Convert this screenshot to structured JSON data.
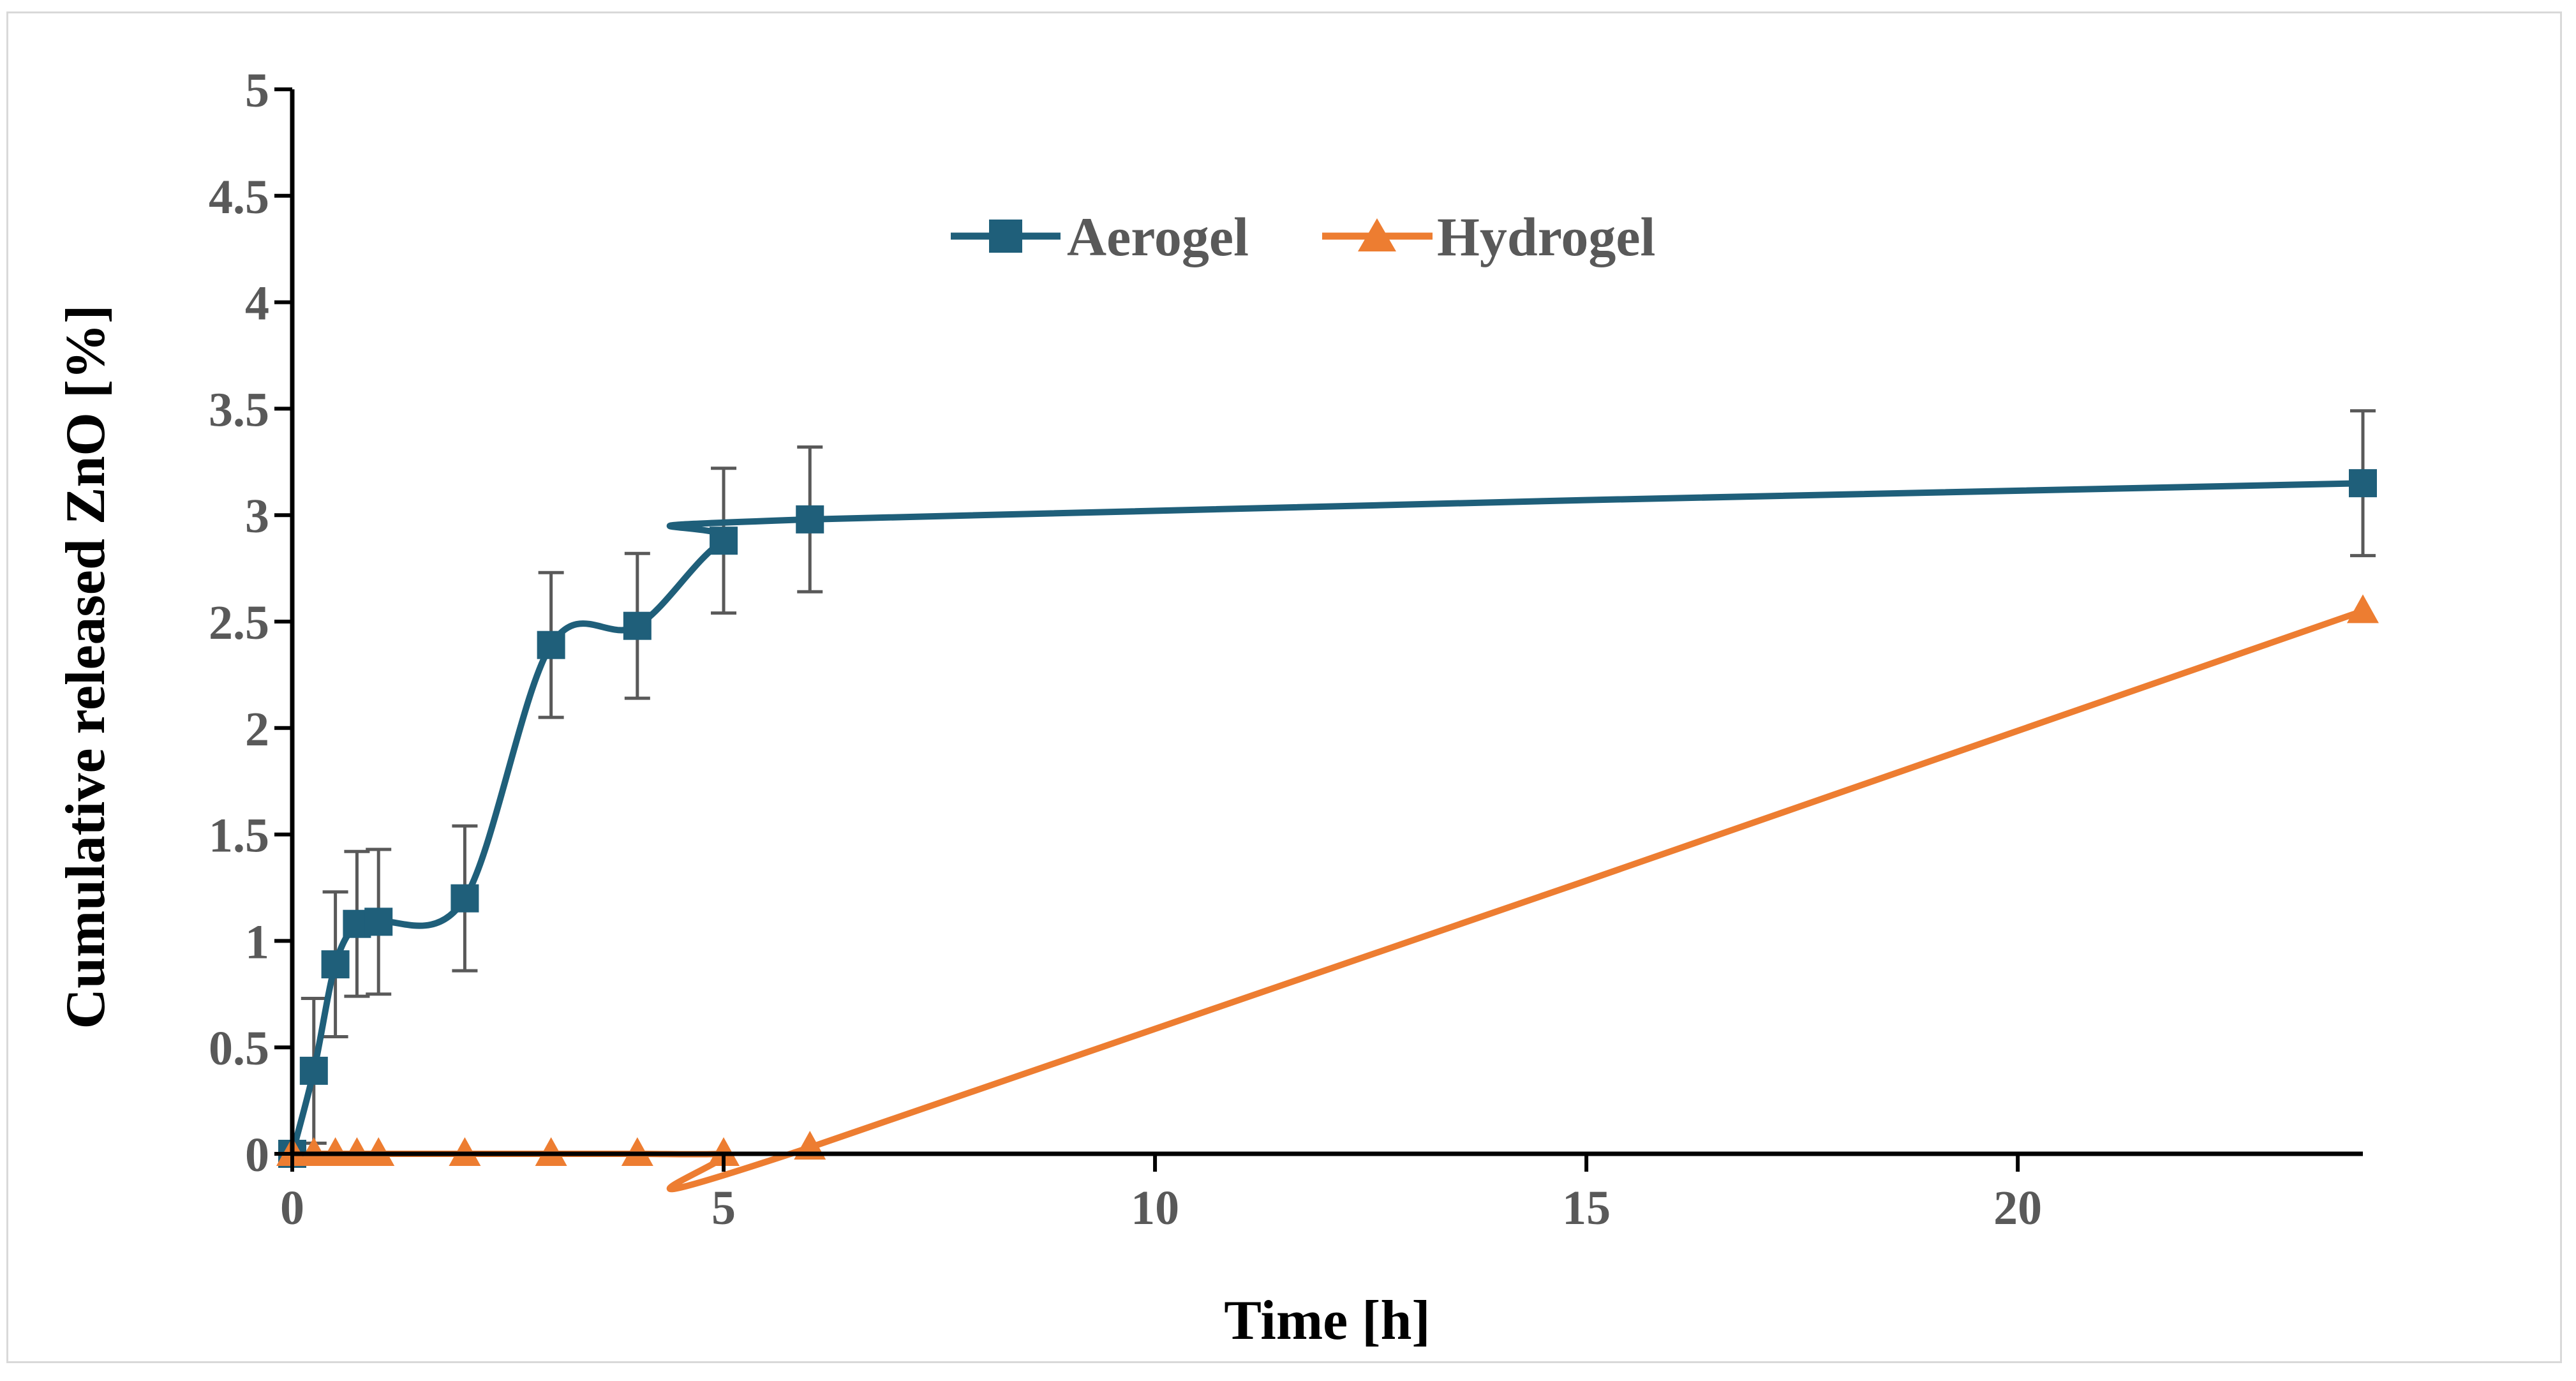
{
  "chart_data": {
    "type": "line",
    "title": "",
    "xlabel": "Time [h]",
    "ylabel": "Cumulative released ZnO [%]",
    "xlim": [
      0,
      24
    ],
    "ylim": [
      0,
      5
    ],
    "xticks": [
      "0",
      "5",
      "10",
      "15",
      "20"
    ],
    "xtick_values": [
      0,
      5,
      10,
      15,
      20
    ],
    "yticks": [
      "0",
      "0.5",
      "1",
      "1.5",
      "2",
      "2.5",
      "3",
      "3.5",
      "4",
      "4.5",
      "5"
    ],
    "ytick_values": [
      0,
      0.5,
      1,
      1.5,
      2,
      2.5,
      3,
      3.5,
      4,
      4.5,
      5
    ],
    "legend_position": "top-center",
    "grid": false,
    "series": [
      {
        "name": "Aerogel",
        "color": "#1f5f7a",
        "marker": "square",
        "x": [
          0,
          0.25,
          0.5,
          0.75,
          1,
          2,
          3,
          4,
          5,
          6,
          24
        ],
        "values": [
          0,
          0.39,
          0.89,
          1.08,
          1.09,
          1.2,
          2.39,
          2.48,
          2.88,
          2.98,
          3.15
        ],
        "error": [
          0,
          0.34,
          0.34,
          0.34,
          0.34,
          0.34,
          0.34,
          0.34,
          0.34,
          0.34,
          0.34
        ]
      },
      {
        "name": "Hydrogel",
        "color": "#ed7d31",
        "marker": "triangle",
        "x": [
          0,
          0.25,
          0.5,
          0.75,
          1,
          2,
          3,
          4,
          5,
          6,
          24
        ],
        "values": [
          0,
          0,
          0,
          0,
          0,
          0,
          0,
          0,
          0,
          0.03,
          2.55
        ]
      }
    ]
  }
}
